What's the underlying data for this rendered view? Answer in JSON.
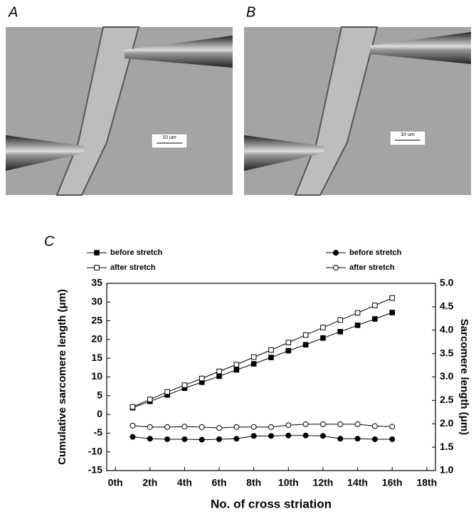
{
  "panels": {
    "a": {
      "label": "A",
      "scale_bar": "10 um"
    },
    "b": {
      "label": "B",
      "scale_bar": "10 um"
    },
    "c": {
      "label": "C"
    }
  },
  "chart_data": {
    "type": "line",
    "x_label": "No. of cross striation",
    "y_label": "Cumulative sarcomere length (μm)",
    "y2_label": "Sarcomere length (μm)",
    "x": [
      1,
      2,
      3,
      4,
      5,
      6,
      7,
      8,
      9,
      10,
      11,
      12,
      13,
      14,
      15,
      16
    ],
    "xlim": [
      -0.5,
      18.5
    ],
    "xticks": [
      {
        "value": 0,
        "label": "0th"
      },
      {
        "value": 2,
        "label": "2th"
      },
      {
        "value": 4,
        "label": "4th"
      },
      {
        "value": 6,
        "label": "6th"
      },
      {
        "value": 8,
        "label": "8th"
      },
      {
        "value": 10,
        "label": "10th"
      },
      {
        "value": 12,
        "label": "12th"
      },
      {
        "value": 14,
        "label": "14th"
      },
      {
        "value": 16,
        "label": "16th"
      },
      {
        "value": 18,
        "label": "18th"
      }
    ],
    "ylim": [
      -15,
      35
    ],
    "yticks": [
      -15,
      -10,
      -5,
      0,
      5,
      10,
      15,
      20,
      25,
      30,
      35
    ],
    "y2lim": [
      1,
      5
    ],
    "y2ticks": [
      {
        "value": 1,
        "label": "1.0"
      },
      1.5,
      {
        "value": 2,
        "label": "2.0"
      },
      2.5,
      {
        "value": 3,
        "label": "3.0"
      },
      3.5,
      {
        "value": 4,
        "label": "4.0"
      },
      4.5,
      {
        "value": 5,
        "label": "5.0"
      }
    ],
    "series": [
      {
        "name": "before stretch",
        "color": "#000000",
        "marker": "square",
        "filled": true,
        "values": [
          1.8,
          3.5,
          5.2,
          7.0,
          8.6,
          10.2,
          11.9,
          13.5,
          15.2,
          17.0,
          18.6,
          20.4,
          22.1,
          23.8,
          25.5,
          27.2
        ]
      },
      {
        "name": "after stretch",
        "color": "#000000",
        "marker": "square",
        "filled": false,
        "values": [
          2.0,
          4.0,
          6.0,
          7.8,
          9.6,
          11.5,
          13.3,
          15.3,
          17.2,
          19.2,
          21.2,
          23.2,
          25.2,
          27.1,
          29.1,
          31.1
        ]
      },
      {
        "name": "before stretch",
        "color": "#000000",
        "marker": "circle",
        "filled": true,
        "axis": "y2",
        "values": [
          1.72,
          1.68,
          1.67,
          1.67,
          1.66,
          1.67,
          1.68,
          1.74,
          1.74,
          1.75,
          1.75,
          1.74,
          1.68,
          1.68,
          1.67,
          1.67
        ]
      },
      {
        "name": "after stretch",
        "color": "#000000",
        "marker": "circle",
        "filled": false,
        "axis": "y2",
        "values": [
          1.96,
          1.93,
          1.93,
          1.94,
          1.93,
          1.91,
          1.93,
          1.93,
          1.93,
          1.97,
          1.99,
          1.99,
          1.99,
          1.99,
          1.95,
          1.94
        ]
      }
    ]
  }
}
